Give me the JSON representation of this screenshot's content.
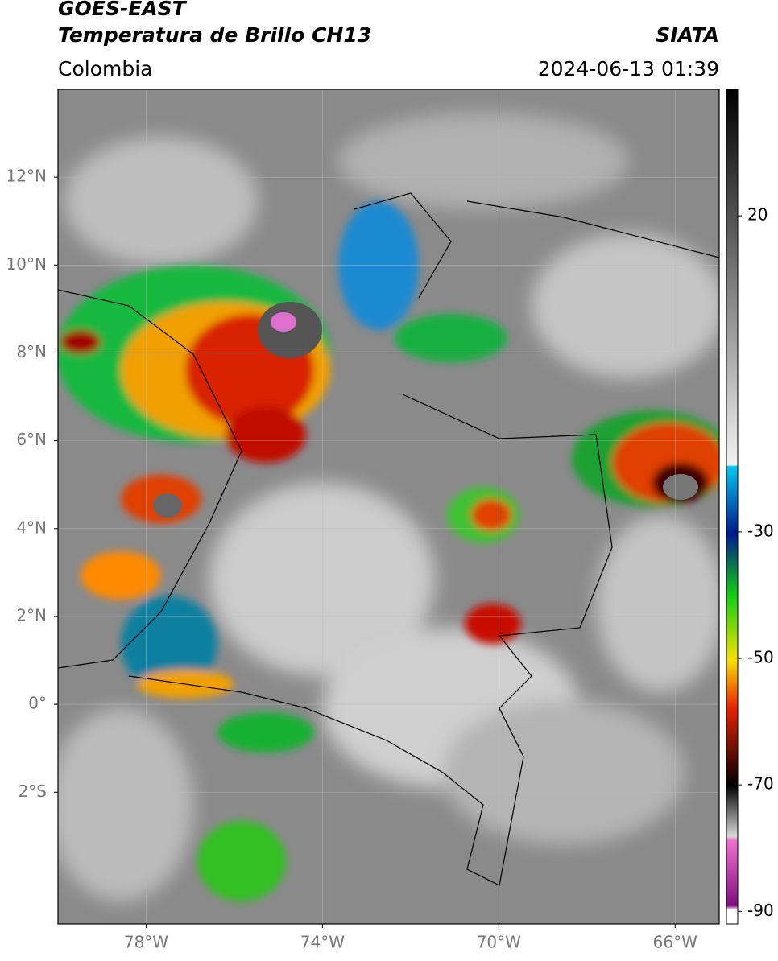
{
  "header": {
    "satellite": "GOES-EAST",
    "product": "Temperatura de Brillo CH13",
    "source": "SIATA",
    "region": "Colombia",
    "datetime": "2024-06-13 01:39"
  },
  "map": {
    "xlim": [
      -80,
      -65
    ],
    "ylim": [
      -5,
      14
    ],
    "xticks": [
      {
        "value": -78,
        "label": "78°W"
      },
      {
        "value": -74,
        "label": "74°W"
      },
      {
        "value": -70,
        "label": "70°W"
      },
      {
        "value": -66,
        "label": "66°W"
      }
    ],
    "yticks": [
      {
        "value": 12,
        "label": "12°N"
      },
      {
        "value": 10,
        "label": "10°N"
      },
      {
        "value": 8,
        "label": "8°N"
      },
      {
        "value": 6,
        "label": "6°N"
      },
      {
        "value": 4,
        "label": "4°N"
      },
      {
        "value": 2,
        "label": "2°N"
      },
      {
        "value": 0,
        "label": "0°"
      },
      {
        "value": -2,
        "label": "2°S"
      }
    ],
    "grid": true
  },
  "colorbar": {
    "lim": [
      -92,
      40
    ],
    "ticks": [
      20,
      -30,
      -50,
      -70,
      -90
    ]
  }
}
